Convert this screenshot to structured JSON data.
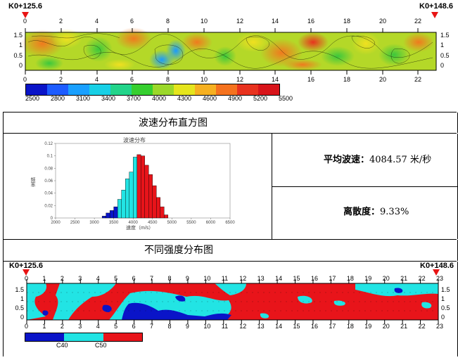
{
  "top_panel": {
    "station_start": "K0+125.6",
    "station_end": "K0+148.6",
    "x_ticks": [
      "0",
      "2",
      "4",
      "6",
      "8",
      "10",
      "12",
      "14",
      "16",
      "18",
      "20",
      "22"
    ],
    "y_ticks": [
      "1.5",
      "1",
      "0.5",
      "0"
    ],
    "colorbar_labels": [
      "2500",
      "2800",
      "3100",
      "3400",
      "3700",
      "4000",
      "4300",
      "4600",
      "4900",
      "5200",
      "5500"
    ],
    "colorbar_colors": [
      "#0a14c8",
      "#1d5cff",
      "#1aa0ff",
      "#18d0e6",
      "#22d48a",
      "#36cf2f",
      "#9bd82a",
      "#e5e51d",
      "#f6b020",
      "#f5721e",
      "#e8321e",
      "#d8141a"
    ]
  },
  "section1": {
    "title": "波速分布直方图"
  },
  "histogram": {
    "title": "波速分布",
    "ylabel": "频率",
    "xlabel": "速度（m/s）",
    "yticks": [
      "0",
      "0.02",
      "0.04",
      "0.06",
      "0.08",
      "0.1",
      "0.12"
    ],
    "xticks": [
      "2000",
      "2500",
      "3000",
      "3500",
      "4000",
      "4500",
      "5000",
      "5500",
      "6000",
      "6500"
    ]
  },
  "stats": {
    "avg_label": "平均波速：",
    "avg_value": "4084.57 米/秒",
    "disp_label": "离散度：",
    "disp_value": "9.33%"
  },
  "section2": {
    "title": "不同强度分布图"
  },
  "bottom_panel": {
    "station_start": "K0+125.6",
    "station_end": "K0+148.6",
    "x_ticks": [
      "0",
      "1",
      "2",
      "3",
      "4",
      "5",
      "6",
      "7",
      "8",
      "9",
      "10",
      "11",
      "12",
      "13",
      "14",
      "15",
      "16",
      "17",
      "18",
      "19",
      "20",
      "21",
      "22",
      "23"
    ],
    "y_ticks": [
      "1.5",
      "1",
      "0.5",
      "0"
    ],
    "legend_labels": [
      "C40",
      "C50"
    ],
    "legend_colors": [
      "#0a14c8",
      "#22e4e4",
      "#e8141a"
    ]
  },
  "chart_data": {
    "type": "bar",
    "title": "波速分布",
    "xlabel": "速度（m/s）",
    "ylabel": "频率",
    "xlim": [
      2000,
      6500
    ],
    "ylim": [
      0,
      0.12
    ],
    "bin_width": 100,
    "bins": [
      3200,
      3300,
      3400,
      3500,
      3600,
      3700,
      3800,
      3900,
      4000,
      4100,
      4200,
      4300,
      4400,
      4500,
      4600,
      4700,
      4800
    ],
    "values": [
      0.003,
      0.008,
      0.012,
      0.018,
      0.03,
      0.045,
      0.063,
      0.074,
      0.098,
      0.102,
      0.1,
      0.085,
      0.07,
      0.052,
      0.033,
      0.018,
      0.005
    ],
    "colors": [
      "#0a14c8",
      "#0a14c8",
      "#0a14c8",
      "#0a14c8",
      "#22e4e4",
      "#22e4e4",
      "#22e4e4",
      "#22e4e4",
      "#22e4e4",
      "#e8141a",
      "#e8141a",
      "#e8141a",
      "#e8141a",
      "#e8141a",
      "#e8141a",
      "#e8141a",
      "#e8141a"
    ]
  }
}
